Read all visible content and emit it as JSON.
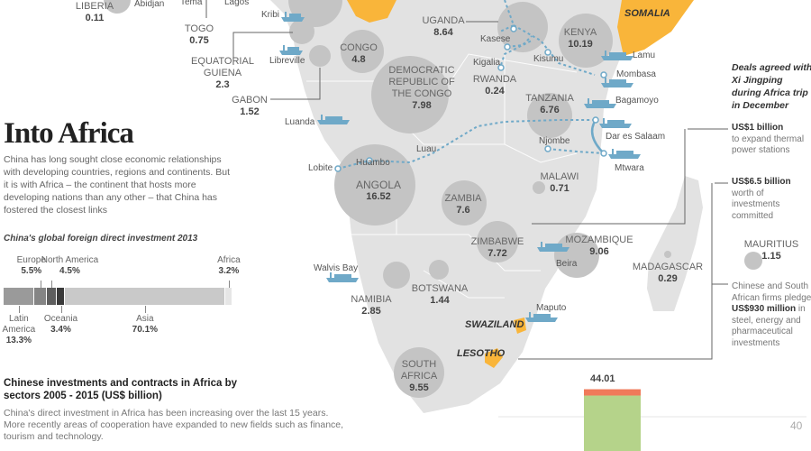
{
  "title": "Into Africa",
  "intro": "China has long sought close economic relationships with developing countries, regions and continents. But it is with Africa – the continent that hosts more developing nations than any other – that China has fostered the closest links",
  "countries": {
    "liberia": {
      "name": "LIBERIA",
      "value": "0.11"
    },
    "togo": {
      "name": "TOGO",
      "value": "0.75"
    },
    "equatorial_guinea": {
      "name": "EQUATORIAL GUIENA",
      "value": "2.3"
    },
    "gabon": {
      "name": "GABON",
      "value": "1.52"
    },
    "congo": {
      "name": "CONGO",
      "value": "4.8"
    },
    "drc": {
      "name": "DEMOCRATIC REPUBLIC OF THE CONGO",
      "value": "7.98"
    },
    "uganda": {
      "name": "UGANDA",
      "value": "8.64"
    },
    "kenya": {
      "name": "KENYA",
      "value": "10.19"
    },
    "rwanda": {
      "name": "RWANDA",
      "value": "0.24"
    },
    "tanzania": {
      "name": "TANZANIA",
      "value": "6.76"
    },
    "angola": {
      "name": "ANGOLA",
      "value": "16.52"
    },
    "zambia": {
      "name": "ZAMBIA",
      "value": "7.6"
    },
    "malawi": {
      "name": "MALAWI",
      "value": "0.71"
    },
    "zimbabwe": {
      "name": "ZIMBABWE",
      "value": "7.72"
    },
    "mozambique": {
      "name": "MOZAMBIQUE",
      "value": "9.06"
    },
    "namibia": {
      "name": "NAMIBIA",
      "value": "2.85"
    },
    "botswana": {
      "name": "BOTSWANA",
      "value": "1.44"
    },
    "madagascar": {
      "name": "MADAGASCAR",
      "value": "0.29"
    },
    "mauritius": {
      "name": "MAURITIUS",
      "value": "1.15"
    },
    "south_africa": {
      "name": "SOUTH AFRICA",
      "value": "9.55"
    }
  },
  "highlighted": {
    "somalia": "SOMALIA",
    "swaziland": "SWAZILAND",
    "lesotho": "LESOTHO"
  },
  "places": {
    "abidjan": "Abidjan",
    "tema": "Tema",
    "lagos": "Lagos",
    "kribi": "Kribi",
    "libreville": "Libreville",
    "luanda": "Luanda",
    "lobite": "Lobite",
    "huambo": "Huambo",
    "luau": "Luau",
    "kasese": "Kasese",
    "kigalia": "Kigalia",
    "kisumu": "Kisumu",
    "lamu": "Lamu",
    "mombasa": "Mombasa",
    "bagamoyo": "Bagamoyo",
    "dar_es_salaam": "Dar es Salaam",
    "njombe": "Njombe",
    "mtwara": "Mtwara",
    "walvis_bay": "Walvis Bay",
    "beira": "Beira",
    "maputo": "Maputo"
  },
  "deals": {
    "title": "Deals agreed with Xi Jingping during Africa trip in December",
    "d1_amount": "US$1 billion",
    "d1_text": "to expand thermal power stations",
    "d2_amount": "US$6.5 billion",
    "d2_text": "worth of investments committed",
    "d3_pre": "Chinese and South African firms pledge ",
    "d3_amount": "US$930 million",
    "d3_post": " in steel, energy and pharmaceutical investments"
  },
  "fdi": {
    "title": "China's global foreign direct investment 2013",
    "segments": [
      {
        "name": "Latin America",
        "pct": 13.3,
        "label": "13.3%",
        "color": "#9a9a9a"
      },
      {
        "name": "Europe",
        "pct": 5.5,
        "label": "5.5%",
        "color": "#858585"
      },
      {
        "name": "North America",
        "pct": 4.5,
        "label": "4.5%",
        "color": "#5e5e5e"
      },
      {
        "name": "Oceania",
        "pct": 3.4,
        "label": "3.4%",
        "color": "#3a3a3a"
      },
      {
        "name": "Asia",
        "pct": 70.1,
        "label": "70.1%",
        "color": "#c9c9c9"
      },
      {
        "name": "Africa",
        "pct": 3.2,
        "label": "3.2%",
        "color": "#e6e6e6"
      }
    ]
  },
  "sectors": {
    "title": "Chinese investments and contracts in Africa by sectors 2005 - 2015 (US$ billion)",
    "desc": "China's direct investment in Africa has been increasing over the last 15 years. More recently areas of cooperation have expanded to new fields such as finance, tourism and technology."
  },
  "chart_data": {
    "type": "bar",
    "title": "Chinese investments and contracts in Africa by sectors 2005 - 2015 (US$ billion)",
    "values": [
      44.01
    ],
    "data_labels": [
      "44.01"
    ],
    "y_ticks": [
      40
    ],
    "y_tick_labels": [
      "40"
    ],
    "colors": {
      "top": "#f07a5a",
      "main": "#b5d38a"
    }
  },
  "colors": {
    "land": "#e2e2e2",
    "circle": "#c4c4c4",
    "highlight": "#f9b53a",
    "route": "#6fa9c8"
  }
}
